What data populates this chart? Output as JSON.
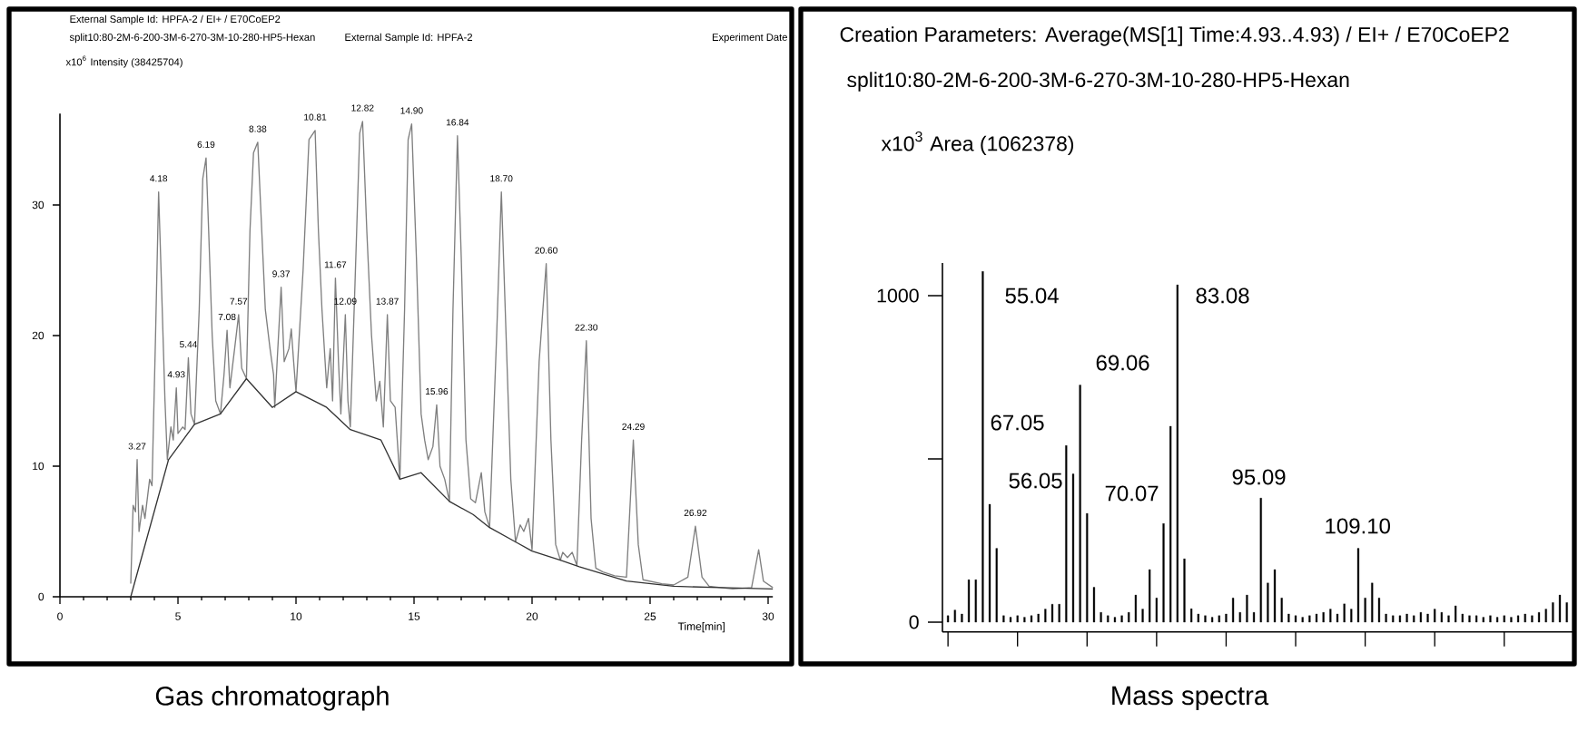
{
  "chart_data": [
    {
      "type": "line",
      "title": "External Sample Id: HPFA-2 / EI+ / E70CoEP2",
      "subtitle": "split10:80-2M-6-200-3M-6-270-3M-10-280-HP5-Hexan",
      "xlabel": "Time[min]",
      "ylabel": "x10$^{6}$ Intensity (38425704)",
      "xlim": [
        0,
        30.2
      ],
      "ylim": [
        0,
        37
      ],
      "xticks": [
        0,
        5,
        10,
        15,
        20,
        25,
        30
      ],
      "yticks": [
        0,
        10,
        20,
        30
      ],
      "series": [
        {
          "color": "#7f7f7f",
          "x": [
            3.0,
            3.1,
            3.2,
            3.27,
            3.35,
            3.5,
            3.6,
            3.8,
            3.9,
            4.05,
            4.18,
            4.3,
            4.45,
            4.55,
            4.7,
            4.8,
            4.93,
            5.0,
            5.2,
            5.3,
            5.44,
            5.55,
            5.7,
            5.9,
            6.05,
            6.19,
            6.3,
            6.45,
            6.6,
            6.8,
            6.95,
            7.08,
            7.2,
            7.4,
            7.57,
            7.7,
            7.9,
            8.05,
            8.2,
            8.38,
            8.5,
            8.7,
            8.9,
            9.05,
            9.1,
            9.2,
            9.37,
            9.5,
            9.7,
            9.8,
            9.9,
            10.0,
            10.3,
            10.55,
            10.81,
            10.95,
            11.1,
            11.3,
            11.45,
            11.55,
            11.67,
            11.8,
            11.9,
            12.09,
            12.2,
            12.3,
            12.5,
            12.7,
            12.82,
            13.0,
            13.2,
            13.4,
            13.55,
            13.7,
            13.87,
            14.0,
            14.2,
            14.4,
            14.6,
            14.75,
            14.9,
            15.1,
            15.3,
            15.45,
            15.6,
            15.8,
            15.96,
            16.1,
            16.3,
            16.5,
            16.65,
            16.84,
            17.0,
            17.2,
            17.4,
            17.6,
            17.85,
            18.0,
            18.2,
            18.5,
            18.7,
            18.9,
            19.1,
            19.3,
            19.5,
            19.65,
            19.85,
            20.0,
            20.3,
            20.6,
            20.8,
            21.0,
            21.2,
            21.3,
            21.5,
            21.7,
            21.9,
            22.1,
            22.3,
            22.5,
            22.7,
            23.0,
            23.5,
            24.0,
            24.29,
            24.5,
            24.7,
            25.5,
            26.0,
            26.6,
            26.92,
            27.2,
            27.5,
            28.5,
            29.3,
            29.6,
            29.8,
            30.2
          ],
          "values": [
            1,
            7,
            6.5,
            10.5,
            5,
            7,
            6,
            9,
            8.5,
            20,
            31,
            24,
            15,
            10.5,
            13,
            12,
            16,
            12.5,
            13,
            12.8,
            18.3,
            14,
            13.2,
            22,
            32,
            33.6,
            28,
            20,
            15,
            14,
            17,
            20.4,
            16,
            19,
            21.6,
            17.5,
            16.7,
            28,
            34,
            34.8,
            30,
            22,
            19,
            17,
            14.5,
            18,
            23.7,
            18,
            19,
            20.5,
            18,
            15.7,
            25,
            35,
            35.7,
            28,
            22,
            16,
            19,
            15,
            24.4,
            18,
            14,
            21.6,
            15,
            13,
            24,
            35.5,
            36.4,
            28,
            20,
            15,
            16.5,
            13,
            21.6,
            15,
            14.5,
            9,
            22,
            35,
            36.2,
            26,
            14,
            12,
            10.5,
            11.5,
            14.7,
            10,
            9,
            7.3,
            22,
            35.3,
            26,
            12,
            7.5,
            7.2,
            9.5,
            6.5,
            5.3,
            20,
            31,
            20,
            9,
            4.2,
            5.5,
            5,
            6,
            3.6,
            18,
            25.5,
            12,
            4,
            2.8,
            3.4,
            3,
            3.4,
            2.4,
            12,
            19.6,
            6,
            2.2,
            1.9,
            1.6,
            1.5,
            12,
            4,
            1.3,
            1,
            0.9,
            1.5,
            5.4,
            1.5,
            0.8,
            0.6,
            0.7,
            3.6,
            1.2,
            0.7
          ]
        },
        {
          "color": "#333333",
          "x": [
            3.0,
            4.6,
            5.7,
            6.8,
            7.9,
            9.0,
            10.0,
            11.3,
            12.3,
            13.6,
            14.4,
            15.3,
            16.5,
            17.5,
            18.2,
            19.3,
            20.0,
            21.2,
            22.0,
            24.0,
            26.0,
            28.0,
            30.2
          ],
          "values": [
            0,
            10.5,
            13.2,
            14,
            16.7,
            14.5,
            15.7,
            14.5,
            12.8,
            12,
            9,
            9.5,
            7.3,
            6.3,
            5.3,
            4.2,
            3.5,
            2.8,
            2.3,
            1.2,
            0.8,
            0.7,
            0.6
          ]
        }
      ],
      "annotations": [
        "External Sample Id: HPFA-2",
        "Experiment Date",
        "Gas chromatograph",
        {
          "text": "3.27",
          "x": 3.27,
          "y": 10.5
        },
        {
          "text": "4.18",
          "x": 4.18,
          "y": 31
        },
        {
          "text": "4.93",
          "x": 4.93,
          "y": 16
        },
        {
          "text": "5.44",
          "x": 5.44,
          "y": 18.3
        },
        {
          "text": "6.19",
          "x": 6.19,
          "y": 33.6
        },
        {
          "text": "7.08",
          "x": 7.08,
          "y": 20.4
        },
        {
          "text": "7.57",
          "x": 7.57,
          "y": 21.6
        },
        {
          "text": "8.38",
          "x": 8.38,
          "y": 34.8
        },
        {
          "text": "9.37",
          "x": 9.37,
          "y": 23.7
        },
        {
          "text": "10.81",
          "x": 10.81,
          "y": 35.7
        },
        {
          "text": "11.67",
          "x": 11.67,
          "y": 24.4
        },
        {
          "text": "12.09",
          "x": 12.09,
          "y": 21.6
        },
        {
          "text": "12.82",
          "x": 12.82,
          "y": 36.4
        },
        {
          "text": "13.87",
          "x": 13.87,
          "y": 21.6
        },
        {
          "text": "14.90",
          "x": 14.9,
          "y": 36.2
        },
        {
          "text": "15.96",
          "x": 15.96,
          "y": 14.7
        },
        {
          "text": "16.84",
          "x": 16.84,
          "y": 35.3
        },
        {
          "text": "18.70",
          "x": 18.7,
          "y": 31
        },
        {
          "text": "20.60",
          "x": 20.6,
          "y": 25.5
        },
        {
          "text": "22.30",
          "x": 22.3,
          "y": 19.6
        },
        {
          "text": "24.29",
          "x": 24.29,
          "y": 12
        },
        {
          "text": "26.92",
          "x": 26.92,
          "y": 5.4
        }
      ]
    },
    {
      "type": "bar",
      "title": "Creation Parameters: Average(MS[1] Time:4.93..4.93) / EI+ / E70CoEP2",
      "subtitle": "split10:80-2M-6-200-3M-6-270-3M-10-280-HP5-Hexan",
      "ylabel": "x10$^{3}$   Area (1062378)",
      "ylim": [
        -30,
        1100
      ],
      "tick_labels": "y",
      "yticks": [
        0,
        {
          "value": 500,
          "label": null
        },
        1000
      ],
      "color": "#000000",
      "categories": [
        null,
        null,
        null,
        null,
        null,
        null,
        null,
        null,
        null,
        null,
        null,
        null,
        null,
        null,
        null,
        null,
        null,
        null,
        null,
        null,
        null,
        null,
        null,
        null,
        null,
        null,
        null,
        null,
        null,
        null,
        null,
        null,
        null,
        null,
        null,
        null,
        null,
        null,
        null,
        null,
        null,
        null,
        null,
        null,
        null,
        null,
        null,
        null,
        null,
        null,
        null,
        null,
        null,
        null,
        null,
        null,
        null,
        null,
        null,
        null,
        null,
        null,
        null,
        null,
        null,
        null,
        null,
        null,
        null,
        null,
        null,
        null,
        null,
        null,
        null,
        null,
        null,
        null,
        null,
        null,
        null,
        null,
        null,
        null,
        null,
        null,
        null,
        null,
        null,
        null
      ],
      "values": [
        20,
        37,
        25,
        130,
        130,
        1074,
        361,
        226,
        20,
        15,
        20,
        15,
        20,
        25,
        40,
        55,
        55,
        541,
        454,
        726,
        333,
        107,
        30,
        20,
        15,
        20,
        30,
        83,
        40,
        161,
        74,
        302,
        600,
        1033,
        194,
        41,
        25,
        20,
        15,
        20,
        25,
        74,
        30,
        83,
        30,
        380,
        120,
        161,
        74,
        25,
        20,
        15,
        20,
        25,
        30,
        40,
        25,
        56,
        40,
        226,
        74,
        120,
        74,
        25,
        20,
        20,
        25,
        20,
        30,
        25,
        40,
        30,
        20,
        50,
        25,
        20,
        20,
        15,
        20,
        15,
        20,
        15,
        20,
        25,
        20,
        30,
        40,
        60,
        83,
        60
      ],
      "annotations": [
        "Mass spectra",
        "55.04",
        "56.05",
        "67.05",
        "69.06",
        "70.07",
        "83.08",
        "95.09",
        "109.10"
      ]
    }
  ]
}
